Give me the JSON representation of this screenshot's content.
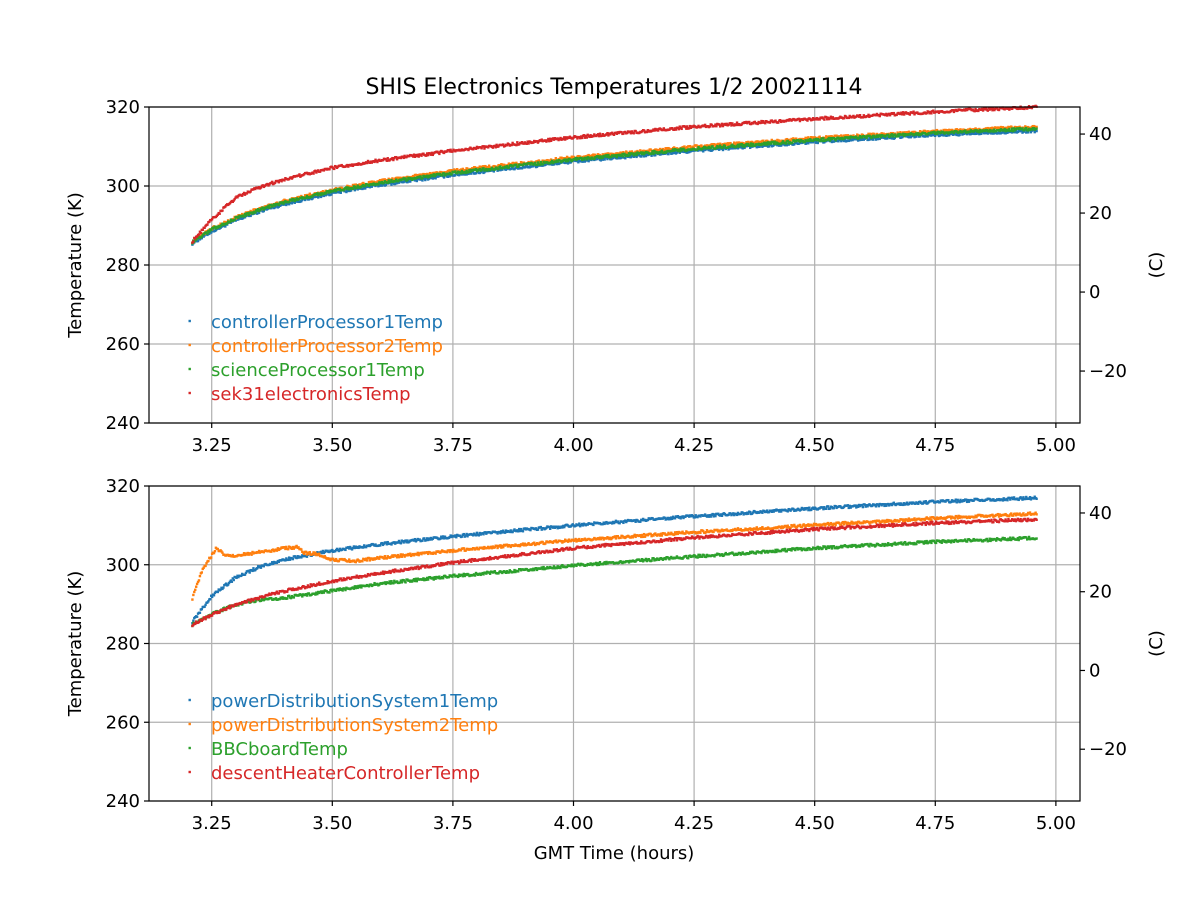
{
  "title": "SHIS Electronics Temperatures 1/2 20021114",
  "chart_data": [
    {
      "type": "scatter",
      "xlabel": "",
      "ylabel": "Temperature (K)",
      "y2label": "(C)",
      "xlim": [
        3.12,
        5.05
      ],
      "ylim": [
        240,
        320
      ],
      "xticks": [
        "3.25",
        "3.50",
        "3.75",
        "4.00",
        "4.25",
        "4.50",
        "4.75",
        "5.00"
      ],
      "yticks": [
        "240",
        "260",
        "280",
        "300",
        "320"
      ],
      "y2ticks": [
        "−20",
        "0",
        "20",
        "40"
      ],
      "grid": true,
      "legend_position": "lower-left",
      "x": [
        3.21,
        3.25,
        3.3,
        3.35,
        3.4,
        3.5,
        3.6,
        3.75,
        4.0,
        4.25,
        4.5,
        4.75,
        4.96
      ],
      "series": [
        {
          "name": "controllerProcessor1Temp",
          "color": "#1f77b4",
          "values": [
            285.5,
            288.5,
            291.3,
            293.6,
            295.4,
            298.2,
            300.3,
            302.8,
            306.2,
            308.9,
            311.2,
            312.9,
            314.0
          ]
        },
        {
          "name": "controllerProcessor2Temp",
          "color": "#ff7f0e",
          "values": [
            286.0,
            289.2,
            292.0,
            294.3,
            296.2,
            299.0,
            301.2,
            303.8,
            307.2,
            309.9,
            312.1,
            313.8,
            315.0
          ]
        },
        {
          "name": "scienceProcessor1Temp",
          "color": "#2ca02c",
          "values": [
            285.8,
            289.0,
            291.8,
            294.0,
            295.9,
            298.7,
            300.8,
            303.3,
            306.7,
            309.4,
            311.6,
            313.4,
            314.5
          ]
        },
        {
          "name": "sek31electronicsTemp",
          "color": "#d62728",
          "values": [
            286.0,
            291.5,
            297.0,
            299.7,
            301.7,
            304.6,
            306.5,
            308.9,
            312.3,
            315.0,
            317.0,
            318.8,
            320.0
          ]
        }
      ]
    },
    {
      "type": "scatter",
      "xlabel": "GMT Time (hours)",
      "ylabel": "Temperature (K)",
      "y2label": "(C)",
      "xlim": [
        3.12,
        5.05
      ],
      "ylim": [
        240,
        320
      ],
      "xticks": [
        "3.25",
        "3.50",
        "3.75",
        "4.00",
        "4.25",
        "4.50",
        "4.75",
        "5.00"
      ],
      "yticks": [
        "240",
        "260",
        "280",
        "300",
        "320"
      ],
      "y2ticks": [
        "−20",
        "0",
        "20",
        "40"
      ],
      "grid": true,
      "legend_position": "lower-left",
      "series": [
        {
          "name": "powerDistributionSystem1Temp",
          "color": "#1f77b4",
          "x": [
            3.21,
            3.25,
            3.3,
            3.35,
            3.4,
            3.5,
            3.6,
            3.75,
            4.0,
            4.25,
            4.5,
            4.75,
            4.96
          ],
          "values": [
            285.5,
            292.0,
            296.8,
            299.5,
            301.3,
            303.6,
            305.2,
            307.2,
            310.0,
            312.3,
            314.3,
            316.0,
            317.0
          ]
        },
        {
          "name": "powerDistributionSystem2Temp",
          "color": "#ff7f0e",
          "x": [
            3.21,
            3.23,
            3.26,
            3.28,
            3.3,
            3.35,
            3.4,
            3.43,
            3.44,
            3.47,
            3.5,
            3.55,
            3.6,
            3.75,
            4.0,
            4.25,
            4.4,
            4.5,
            4.75,
            4.96
          ],
          "values": [
            291.5,
            298.5,
            304.3,
            302.2,
            302.3,
            303.2,
            304.2,
            304.5,
            303.0,
            302.7,
            301.2,
            301.0,
            301.8,
            303.6,
            306.2,
            308.3,
            309.3,
            310.1,
            311.8,
            313.0
          ]
        },
        {
          "name": "BBCboardTemp",
          "color": "#2ca02c",
          "x": [
            3.21,
            3.25,
            3.3,
            3.35,
            3.4,
            3.5,
            3.6,
            3.75,
            4.0,
            4.25,
            4.5,
            4.75,
            4.96
          ],
          "values": [
            284.8,
            287.5,
            289.9,
            291.1,
            291.6,
            293.4,
            295.2,
            297.1,
            299.8,
            302.1,
            304.2,
            305.8,
            306.8
          ]
        },
        {
          "name": "descentHeaterControllerTemp",
          "color": "#d62728",
          "x": [
            3.21,
            3.25,
            3.3,
            3.35,
            3.4,
            3.5,
            3.6,
            3.75,
            4.0,
            4.25,
            4.5,
            4.75,
            4.96
          ],
          "values": [
            284.8,
            287.3,
            289.8,
            291.7,
            293.3,
            295.8,
            297.9,
            300.5,
            304.2,
            306.9,
            309.0,
            310.6,
            311.5
          ]
        }
      ]
    }
  ]
}
